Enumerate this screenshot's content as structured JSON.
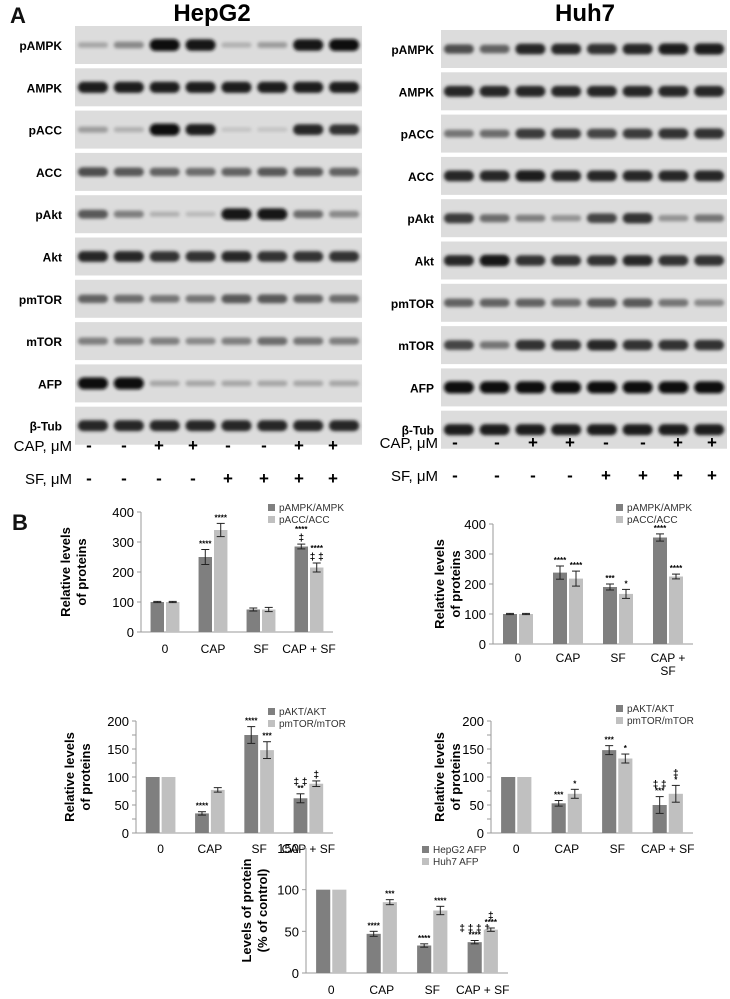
{
  "panel_labels": [
    "A",
    "B"
  ],
  "blots": [
    {
      "title": "HepG2",
      "rows": [
        {
          "label": "pAMPK",
          "intensity": [
            0.2,
            0.35,
            1.0,
            0.95,
            0.15,
            0.25,
            0.95,
            1.0
          ]
        },
        {
          "label": "AMPK",
          "intensity": [
            0.9,
            0.9,
            0.9,
            0.9,
            0.9,
            0.9,
            0.9,
            0.9
          ]
        },
        {
          "label": "pACC",
          "intensity": [
            0.25,
            0.15,
            1.0,
            0.9,
            0.05,
            0.05,
            0.85,
            0.8
          ]
        },
        {
          "label": "ACC",
          "intensity": [
            0.65,
            0.6,
            0.55,
            0.5,
            0.55,
            0.6,
            0.6,
            0.55
          ]
        },
        {
          "label": "pAkt",
          "intensity": [
            0.6,
            0.4,
            0.15,
            0.1,
            0.95,
            0.95,
            0.5,
            0.35
          ]
        },
        {
          "label": "Akt",
          "intensity": [
            0.85,
            0.85,
            0.8,
            0.8,
            0.85,
            0.8,
            0.8,
            0.8
          ]
        },
        {
          "label": "pmTOR",
          "intensity": [
            0.55,
            0.5,
            0.45,
            0.45,
            0.6,
            0.6,
            0.55,
            0.5
          ]
        },
        {
          "label": "mTOR",
          "intensity": [
            0.4,
            0.4,
            0.4,
            0.35,
            0.4,
            0.5,
            0.45,
            0.4
          ]
        },
        {
          "label": "AFP",
          "intensity": [
            1.0,
            1.0,
            0.2,
            0.2,
            0.2,
            0.2,
            0.2,
            0.2
          ]
        },
        {
          "label": "β-Tub",
          "intensity": [
            0.85,
            0.85,
            0.85,
            0.85,
            0.85,
            0.85,
            0.85,
            0.85
          ]
        }
      ],
      "treatments": [
        {
          "label": "CAP, μM",
          "signs": [
            "-",
            "-",
            "+",
            "+",
            "-",
            "-",
            "+",
            "+"
          ]
        },
        {
          "label": "SF, μM",
          "signs": [
            "-",
            "-",
            "-",
            "-",
            "+",
            "+",
            "+",
            "+"
          ]
        }
      ]
    },
    {
      "title": "Huh7",
      "rows": [
        {
          "label": "pAMPK",
          "intensity": [
            0.65,
            0.55,
            0.85,
            0.85,
            0.8,
            0.85,
            0.9,
            0.9
          ]
        },
        {
          "label": "AMPK",
          "intensity": [
            0.85,
            0.85,
            0.85,
            0.85,
            0.85,
            0.85,
            0.85,
            0.85
          ]
        },
        {
          "label": "pACC",
          "intensity": [
            0.45,
            0.5,
            0.75,
            0.75,
            0.7,
            0.75,
            0.8,
            0.8
          ]
        },
        {
          "label": "ACC",
          "intensity": [
            0.85,
            0.85,
            0.9,
            0.85,
            0.85,
            0.85,
            0.85,
            0.85
          ]
        },
        {
          "label": "pAkt",
          "intensity": [
            0.75,
            0.5,
            0.4,
            0.3,
            0.7,
            0.8,
            0.3,
            0.45
          ]
        },
        {
          "label": "Akt",
          "intensity": [
            0.85,
            0.95,
            0.8,
            0.8,
            0.8,
            0.85,
            0.8,
            0.8
          ]
        },
        {
          "label": "pmTOR",
          "intensity": [
            0.55,
            0.55,
            0.55,
            0.5,
            0.6,
            0.6,
            0.45,
            0.35
          ]
        },
        {
          "label": "mTOR",
          "intensity": [
            0.7,
            0.45,
            0.8,
            0.8,
            0.85,
            0.8,
            0.8,
            0.8
          ]
        },
        {
          "label": "AFP",
          "intensity": [
            1.0,
            1.0,
            1.0,
            1.0,
            1.0,
            1.0,
            1.0,
            1.0
          ]
        },
        {
          "label": "β-Tub",
          "intensity": [
            0.9,
            0.9,
            0.9,
            0.9,
            0.9,
            0.9,
            0.9,
            0.9
          ]
        }
      ],
      "treatments": [
        {
          "label": "CAP, μM",
          "signs": [
            "-",
            "-",
            "+",
            "+",
            "-",
            "-",
            "+",
            "+"
          ]
        },
        {
          "label": "SF, μM",
          "signs": [
            "-",
            "-",
            "-",
            "-",
            "+",
            "+",
            "+",
            "+"
          ]
        }
      ]
    }
  ],
  "chart_data": [
    {
      "type": "bar",
      "ylabel": "Relative levels of proteins",
      "ylim": [
        0,
        400
      ],
      "yticks": [
        0,
        100,
        200,
        300,
        400
      ],
      "categories": [
        "0",
        "CAP",
        "SF",
        "CAP + SF"
      ],
      "legend": "top-right",
      "series": [
        {
          "name": "pAMPK/AMPK",
          "values": [
            100,
            250,
            75,
            285
          ],
          "errors": [
            2,
            25,
            5,
            8
          ],
          "annotations": [
            "",
            "****",
            "",
            "****\n‡"
          ]
        },
        {
          "name": "pACC/ACC",
          "values": [
            100,
            340,
            75,
            215
          ],
          "errors": [
            2,
            22,
            7,
            15
          ],
          "annotations": [
            "",
            "****",
            "",
            "****\n‡ ‡"
          ]
        }
      ]
    },
    {
      "type": "bar",
      "ylabel": "Relative levels of proteins",
      "ylim": [
        0,
        400
      ],
      "yticks": [
        0,
        100,
        200,
        300,
        400
      ],
      "categories": [
        "0",
        "CAP",
        "SF",
        "CAP +\nSF"
      ],
      "legend": "top-right",
      "series": [
        {
          "name": "pAMPK/AMPK",
          "values": [
            100,
            238,
            190,
            355
          ],
          "errors": [
            2,
            22,
            10,
            12
          ],
          "annotations": [
            "",
            "****",
            "***",
            "****"
          ]
        },
        {
          "name": "pACC/ACC",
          "values": [
            100,
            218,
            167,
            225
          ],
          "errors": [
            2,
            25,
            15,
            8
          ],
          "annotations": [
            "",
            "****",
            "*",
            "****"
          ]
        }
      ]
    },
    {
      "type": "bar",
      "ylabel": "Relative levels of proteins",
      "ylim": [
        0,
        200
      ],
      "yticks": [
        0,
        25,
        50,
        75,
        100,
        125,
        150,
        175,
        200
      ],
      "ytick_labels": [
        "0",
        "",
        "50",
        "",
        "100",
        "",
        "150",
        "",
        "200"
      ],
      "categories": [
        "0",
        "CAP",
        "SF",
        "CAP + SF"
      ],
      "legend": "top-right",
      "series": [
        {
          "name": "pAKT/AKT",
          "values": [
            100,
            35,
            175,
            62
          ],
          "errors": [
            1,
            3,
            15,
            8
          ],
          "annotations": [
            "",
            "****",
            "****",
            "‡ ‡\n**"
          ]
        },
        {
          "name": "pmTOR/mTOR",
          "values": [
            100,
            77,
            148,
            88
          ],
          "errors": [
            1,
            4,
            15,
            5
          ],
          "annotations": [
            "",
            "",
            "***",
            "‡"
          ]
        }
      ]
    },
    {
      "type": "bar",
      "ylabel": "Relative levels of proteins",
      "ylim": [
        0,
        200
      ],
      "yticks": [
        0,
        25,
        50,
        75,
        100,
        125,
        150,
        175,
        200
      ],
      "ytick_labels": [
        "0",
        "",
        "50",
        "",
        "100",
        "",
        "150",
        "",
        "200"
      ],
      "categories": [
        "0",
        "CAP",
        "SF",
        "CAP + SF"
      ],
      "legend": "top-right",
      "series": [
        {
          "name": "pAKT/AKT",
          "values": [
            100,
            53,
            148,
            50
          ],
          "errors": [
            1,
            5,
            8,
            15
          ],
          "annotations": [
            "",
            "***",
            "***",
            "‡ ‡\n***"
          ]
        },
        {
          "name": "pmTOR/mTOR",
          "values": [
            100,
            70,
            133,
            70
          ],
          "errors": [
            1,
            8,
            8,
            15
          ],
          "annotations": [
            "",
            "*",
            "*",
            "‡\n*"
          ]
        }
      ]
    },
    {
      "type": "bar",
      "ylabel": "Levels of protein (% of control)",
      "ylim": [
        0,
        150
      ],
      "yticks": [
        0,
        50,
        100,
        150
      ],
      "categories": [
        "0",
        "CAP",
        "SF",
        "CAP + SF"
      ],
      "legend": "top-right",
      "series": [
        {
          "name": "HepG2 AFP",
          "values": [
            100,
            47,
            33,
            37
          ],
          "errors": [
            1,
            3,
            2,
            2
          ],
          "annotations": [
            "",
            "****",
            "****",
            "‡ ‡ ‡ ‡\n****"
          ]
        },
        {
          "name": "Huh7 AFP",
          "values": [
            100,
            85,
            75,
            52
          ],
          "errors": [
            1,
            3,
            5,
            2
          ],
          "annotations": [
            "",
            "***",
            "****",
            "‡\n****"
          ]
        }
      ]
    }
  ],
  "colors": {
    "dark_bar": "#7f7f7f",
    "light_bar": "#c0c0c0",
    "axis": "#9a9a9a",
    "text": "#111111"
  }
}
